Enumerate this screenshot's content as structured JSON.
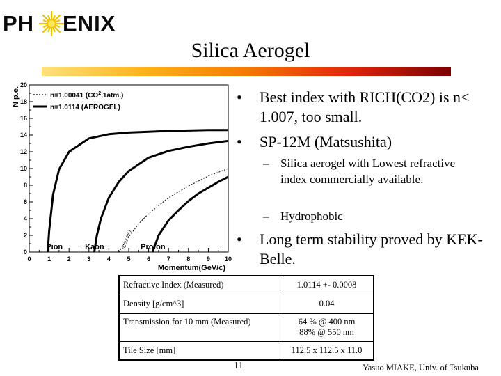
{
  "logo": {
    "text_left": "PH",
    "text_right": "ENIX",
    "colors": {
      "text": "#0a0a0a",
      "sun_outer": "#f0c000",
      "sun_inner": "#ffe95a"
    },
    "icon": "sunburst-icon"
  },
  "title": "Silica Aerogel",
  "accent_gradient": [
    "#ffe27a",
    "#ffb21a",
    "#f57a00",
    "#e2260a",
    "#7a0000"
  ],
  "bullets": [
    {
      "text": "Best index with RICH(CO2) is n< 1.007, too small."
    },
    {
      "text": "SP-12M (Matsushita)",
      "sub": [
        "Silica aerogel with Lowest refractive index commercially available.",
        "Hydrophobic"
      ]
    },
    {
      "text": "Long term stability proved by KEK-Belle."
    }
  ],
  "bullet_mark": "•",
  "sub_mark": "–",
  "table": {
    "rows": [
      {
        "label": "Refractive Index (Measured)",
        "value": [
          "1.0114 +- 0.0008"
        ]
      },
      {
        "label": "Density [g/cm^3]",
        "value": [
          "0.04"
        ]
      },
      {
        "label": "Transmission for 10 mm (Measured)",
        "value": [
          "64 % @ 400 nm",
          "88% @ 550 nm"
        ]
      },
      {
        "label": "Tile Size [mm]",
        "value": [
          "112.5 x 112.5 x 11.0"
        ]
      }
    ]
  },
  "footer": {
    "page": "11",
    "author": "Yasuo MIAKE, Univ. of Tsukuba"
  },
  "chart_data": {
    "type": "line",
    "xlabel": "Momentum(GeV/c)",
    "ylabel": "N p.e.",
    "xlim": [
      0,
      10
    ],
    "ylim": [
      0,
      20
    ],
    "xticks": [
      0,
      1,
      2,
      3,
      4,
      5,
      6,
      7,
      8,
      9,
      10
    ],
    "yticks": [
      0,
      2,
      4,
      6,
      8,
      10,
      12,
      14,
      16,
      18,
      20
    ],
    "grid": false,
    "legend_placement": "top-left",
    "legend": [
      {
        "label": "n=1.00041 (CO",
        "sup": "2",
        "tail": ",1atm.)",
        "style": "dotted"
      },
      {
        "label": "n=1.0114   (AEROGEL)",
        "style": "solid"
      }
    ],
    "particle_labels": [
      {
        "text": "Pion",
        "x": 0.85
      },
      {
        "text": "Kaon",
        "x": 2.8
      },
      {
        "text": "Proton",
        "x": 5.6
      }
    ],
    "co2_annotation": "(CO2 thr.)",
    "series": [
      {
        "name": "Pion (AEROGEL)",
        "style": "solid",
        "x": [
          0.93,
          1.0,
          1.2,
          1.5,
          2.0,
          3.0,
          4.0,
          5.0,
          6.0,
          7.0,
          8.0,
          9.0,
          10.0
        ],
        "y": [
          0.0,
          2.5,
          6.9,
          9.9,
          12.0,
          13.6,
          14.1,
          14.3,
          14.4,
          14.5,
          14.55,
          14.6,
          14.6
        ]
      },
      {
        "name": "Kaon (AEROGEL)",
        "style": "solid",
        "x": [
          3.27,
          3.4,
          3.6,
          4.0,
          4.5,
          5.0,
          6.0,
          7.0,
          8.0,
          9.0,
          10.0
        ],
        "y": [
          0.0,
          2.0,
          4.0,
          6.5,
          8.4,
          9.7,
          11.3,
          12.1,
          12.6,
          13.0,
          13.3
        ]
      },
      {
        "name": "Proton (AEROGEL)",
        "style": "solid",
        "x": [
          6.2,
          6.5,
          7.0,
          7.5,
          8.0,
          8.5,
          9.0,
          9.5,
          10.0
        ],
        "y": [
          0.0,
          2.0,
          3.8,
          5.0,
          6.1,
          7.0,
          7.7,
          8.4,
          9.0
        ]
      },
      {
        "name": "Kaon (CO2)",
        "style": "dotted",
        "x": [
          4.5,
          5.0,
          5.5,
          6.0,
          7.0,
          8.0,
          9.0,
          10.0
        ],
        "y": [
          0.0,
          1.8,
          3.4,
          4.6,
          6.5,
          7.9,
          9.1,
          10.0
        ]
      }
    ]
  }
}
